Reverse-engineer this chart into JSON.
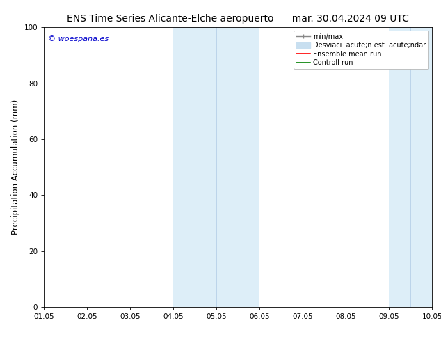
{
  "title_left": "ENS Time Series Alicante-Elche aeropuerto",
  "title_right": "mar. 30.04.2024 09 UTC",
  "ylabel": "Precipitation Accumulation (mm)",
  "ylim": [
    0,
    100
  ],
  "xlim": [
    0,
    9
  ],
  "xtick_positions": [
    0,
    1,
    2,
    3,
    4,
    5,
    6,
    7,
    8,
    9
  ],
  "xtick_labels": [
    "01.05",
    "02.05",
    "03.05",
    "04.05",
    "05.05",
    "06.05",
    "07.05",
    "08.05",
    "09.05",
    "10.05"
  ],
  "ytick_labels": [
    "0",
    "20",
    "40",
    "60",
    "80",
    "100"
  ],
  "ytick_values": [
    0,
    20,
    40,
    60,
    80,
    100
  ],
  "shaded_regions": [
    {
      "xstart": 3.0,
      "xend": 5.0,
      "color": "#ddeef8"
    },
    {
      "xstart": 8.0,
      "xend": 9.0,
      "color": "#ddeef8"
    }
  ],
  "shaded_inner_lines": [
    {
      "x": 4.0,
      "color": "#bbd4ea"
    },
    {
      "x": 8.5,
      "color": "#bbd4ea"
    }
  ],
  "watermark_text": "© woespana.es",
  "watermark_color": "#0000cc",
  "legend_label_minmax": "min/max",
  "legend_label_std": "Desviaci  acute;n est  acute;ndar",
  "legend_label_ensemble": "Ensemble mean run",
  "legend_label_control": "Controll run",
  "bg_color": "#ffffff",
  "axes_bg_color": "#ffffff",
  "title_fontsize": 10,
  "tick_fontsize": 7.5,
  "ylabel_fontsize": 8.5,
  "legend_fontsize": 7,
  "watermark_fontsize": 8
}
